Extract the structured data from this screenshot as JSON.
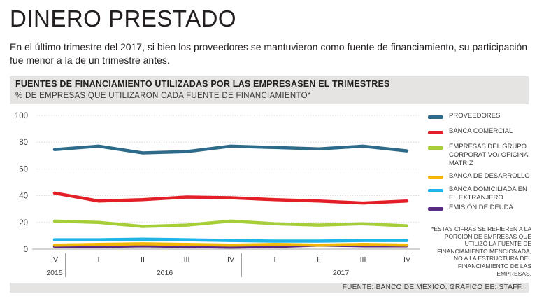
{
  "header": {
    "title": "DINERO PRESTADO",
    "subtitle": "En el último trimestre del 2017, si bien los proveedores se mantuvieron como fuente de financiamiento, su participación fue menor a la de un trimestre antes."
  },
  "chart_header": {
    "title": "FUENTES DE FINANCIAMIENTO UTILIZADAS POR LAS EMPRESASEN EL TRIMESTRES",
    "subtitle": "% DE EMPRESAS QUE UTILIZARON CADA FUENTE DE FINANCIAMIENTO*"
  },
  "chart_data": {
    "type": "line",
    "title": "FUENTES DE FINANCIAMIENTO UTILIZADAS POR LAS EMPRESASEN EL TRIMESTRES",
    "ylabel": "% DE EMPRESAS QUE UTILIZARON CADA FUENTE DE FINANCIAMIENTO*",
    "xlabel": "",
    "ylim": [
      0,
      100
    ],
    "yticks": [
      "0",
      "20",
      "40",
      "60",
      "80",
      "100"
    ],
    "grid": true,
    "categories": [
      "IV",
      "I",
      "II",
      "III",
      "IV",
      "I",
      "II",
      "III",
      "IV"
    ],
    "years": [
      {
        "label": "2015",
        "start": 0,
        "end": 0
      },
      {
        "label": "2016",
        "start": 1,
        "end": 4
      },
      {
        "label": "2017",
        "start": 5,
        "end": 8
      }
    ],
    "series": [
      {
        "name": "PROVEEDORES",
        "color": "#2e6a8a",
        "values": [
          74.5,
          77,
          72,
          73,
          77,
          76,
          75,
          77,
          73.5
        ]
      },
      {
        "name": "BANCA COMERCIAL",
        "color": "#e31e26",
        "values": [
          42,
          36,
          37,
          39,
          38.5,
          37,
          36,
          34.5,
          36
        ]
      },
      {
        "name": "EMPRESAS DEL GRUPO CORPORATIVO/ OFICINA MATRIZ",
        "color": "#a6ce39",
        "values": [
          21,
          20,
          17,
          18,
          21,
          19,
          18,
          19,
          17.5
        ]
      },
      {
        "name": "BANCA DE DESARROLLO",
        "color": "#f2b705",
        "values": [
          3,
          3.5,
          4,
          3.5,
          3,
          3.5,
          3,
          3.5,
          3
        ]
      },
      {
        "name": "BANCA DOMICILIADA EN EL EXTRANJERO",
        "color": "#1fb5e8",
        "values": [
          7,
          7,
          7.5,
          7,
          6.5,
          6,
          6,
          6.5,
          6.5
        ]
      },
      {
        "name": "EMISIÓN DE DEUDA",
        "color": "#5b2a86",
        "values": [
          2,
          2,
          2.5,
          2,
          1.5,
          2,
          3,
          2.5,
          2.5
        ]
      }
    ],
    "legend_position": "right"
  },
  "legend": [
    {
      "label": "PROVEEDORES",
      "color": "#2e6a8a"
    },
    {
      "label": "BANCA COMERCIAL",
      "color": "#e31e26"
    },
    {
      "label": "EMPRESAS DEL GRUPO CORPORATIVO/ OFICINA MATRIZ",
      "color": "#a6ce39"
    },
    {
      "label": "BANCA DE DESARROLLO",
      "color": "#f2b705"
    },
    {
      "label": "BANCA DOMICILIADA EN EL EXTRANJERO",
      "color": "#1fb5e8"
    },
    {
      "label": "EMISIÓN DE DEUDA",
      "color": "#5b2a86"
    }
  ],
  "note": "*ESTAS CIFRAS SE REFIEREN A LA PORCIÓN DE EMPRESAS QUE UTILIZÓ LA FUENTE DE FINANCIAMIENTO MENCIONADA, NO A LA ESTRUCTURA DEL FINANCIAMIENTO DE LAS EMPRESAS.",
  "footer": {
    "source": "FUENTE: BANCO DE MÉXICO.  GRÁFICO EE: STAFF."
  }
}
